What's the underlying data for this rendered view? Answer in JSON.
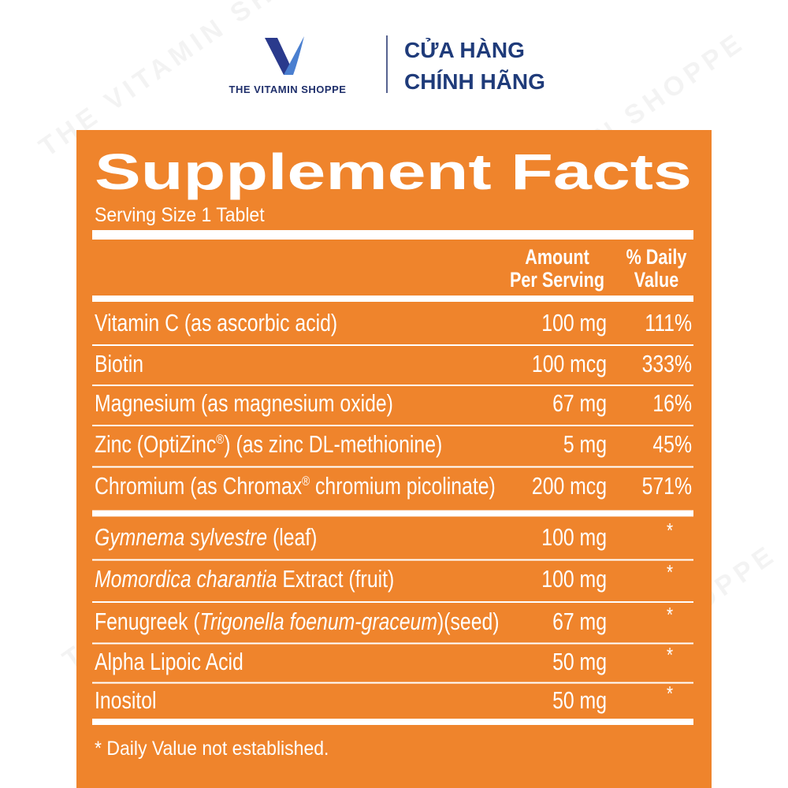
{
  "header": {
    "logo_text": "THE VITAMIN SHOPPE",
    "tagline_lines": [
      "CỬA HÀNG",
      "CHÍNH HÃNG"
    ]
  },
  "watermark": "THE VITAMIN SHOPPE",
  "panel": {
    "title": "Supplement Facts",
    "serving_size": "Serving Size 1 Tablet",
    "column_headers": {
      "amount": [
        "Amount",
        "Per Serving"
      ],
      "daily_value": [
        "% Daily",
        "Value"
      ]
    },
    "rows": [
      {
        "name": [
          {
            "text": "Vitamin C (as ascorbic acid)"
          }
        ],
        "amount": "100 mg",
        "daily_value": "111%"
      },
      {
        "name": [
          {
            "text": "Biotin"
          }
        ],
        "amount": "100 mcg",
        "daily_value": "333%"
      },
      {
        "name": [
          {
            "text": "Magnesium (as magnesium oxide)"
          }
        ],
        "amount": "67 mg",
        "daily_value": "16%"
      },
      {
        "name": [
          {
            "text": "Zinc (OptiZinc"
          },
          {
            "text": "®",
            "sup": true
          },
          {
            "text": ") (as zinc DL-methionine)"
          }
        ],
        "amount": "5 mg",
        "daily_value": "45%"
      },
      {
        "name": [
          {
            "text": "Chromium (as Chromax"
          },
          {
            "text": "®",
            "sup": true
          },
          {
            "text": " chromium picolinate)"
          }
        ],
        "amount": "200 mcg",
        "daily_value": "571%"
      },
      {
        "name": [
          {
            "text": "Gymnema sylvestre",
            "italic": true
          },
          {
            "text": " (leaf)"
          }
        ],
        "amount": "100 mg",
        "daily_value": "*"
      },
      {
        "name": [
          {
            "text": "Momordica charantia",
            "italic": true
          },
          {
            "text": " Extract (fruit)"
          }
        ],
        "amount": "100 mg",
        "daily_value": "*"
      },
      {
        "name": [
          {
            "text": "Fenugreek ("
          },
          {
            "text": "Trigonella foenum-graceum",
            "italic": true
          },
          {
            "text": ")(seed)"
          }
        ],
        "amount": "67 mg",
        "daily_value": "*"
      },
      {
        "name": [
          {
            "text": "Alpha Lipoic Acid"
          }
        ],
        "amount": "50 mg",
        "daily_value": "*"
      },
      {
        "name": [
          {
            "text": "Inositol"
          }
        ],
        "amount": "50 mg",
        "daily_value": "*"
      }
    ],
    "footnote": "* Daily Value not established."
  }
}
